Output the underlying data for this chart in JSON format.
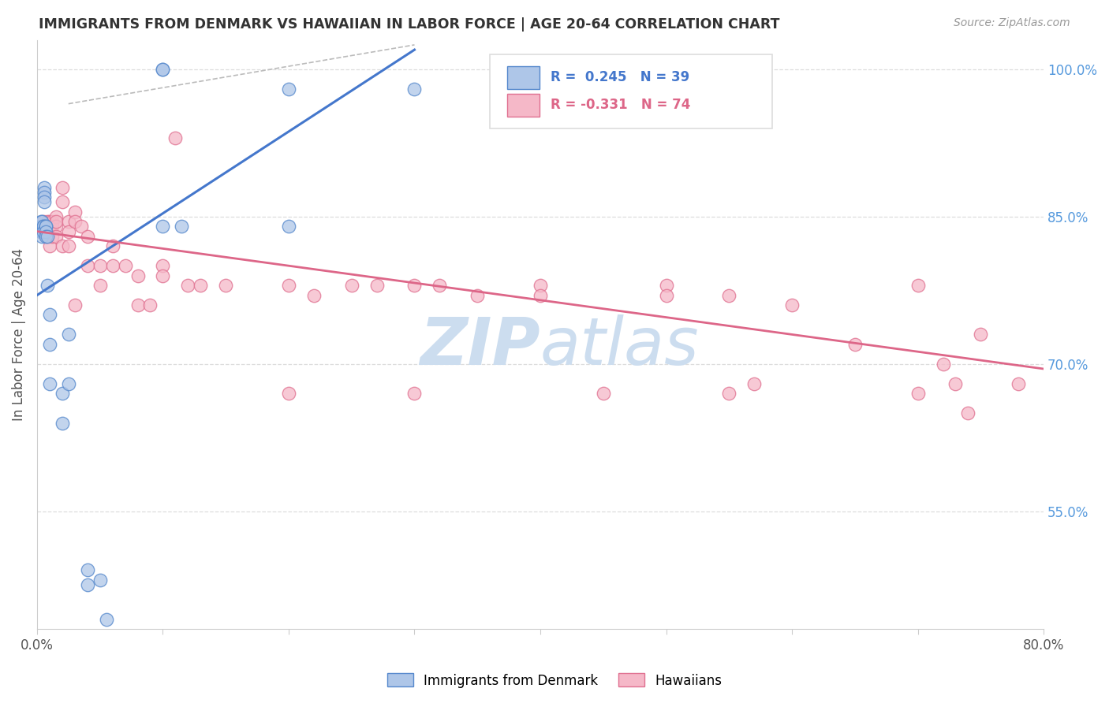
{
  "title": "IMMIGRANTS FROM DENMARK VS HAWAIIAN IN LABOR FORCE | AGE 20-64 CORRELATION CHART",
  "source": "Source: ZipAtlas.com",
  "ylabel": "In Labor Force | Age 20-64",
  "xmin": 0.0,
  "xmax": 0.8,
  "ymin": 0.43,
  "ymax": 1.03,
  "blue_color": "#aec6e8",
  "blue_edge_color": "#5588cc",
  "pink_color": "#f5b8c8",
  "pink_edge_color": "#e07090",
  "blue_line_color": "#4477cc",
  "pink_line_color": "#dd6688",
  "right_axis_color": "#5599dd",
  "grid_color": "#dddddd",
  "watermark_color": "#ccddef",
  "scatter_blue_x": [
    0.003,
    0.003,
    0.003,
    0.004,
    0.004,
    0.004,
    0.004,
    0.004,
    0.005,
    0.005,
    0.005,
    0.006,
    0.006,
    0.006,
    0.006,
    0.007,
    0.007,
    0.007,
    0.007,
    0.008,
    0.008,
    0.01,
    0.01,
    0.01,
    0.02,
    0.02,
    0.025,
    0.025,
    0.04,
    0.04,
    0.05,
    0.055,
    0.1,
    0.1,
    0.1,
    0.115,
    0.2,
    0.2,
    0.3
  ],
  "scatter_blue_y": [
    0.835,
    0.84,
    0.845,
    0.84,
    0.84,
    0.845,
    0.835,
    0.83,
    0.84,
    0.84,
    0.835,
    0.88,
    0.875,
    0.87,
    0.865,
    0.84,
    0.84,
    0.835,
    0.83,
    0.78,
    0.83,
    0.75,
    0.72,
    0.68,
    0.67,
    0.64,
    0.73,
    0.68,
    0.49,
    0.475,
    0.48,
    0.44,
    1.0,
    1.0,
    0.84,
    0.84,
    0.84,
    0.98,
    0.98
  ],
  "scatter_pink_x": [
    0.003,
    0.004,
    0.005,
    0.005,
    0.006,
    0.006,
    0.007,
    0.007,
    0.008,
    0.008,
    0.008,
    0.01,
    0.01,
    0.01,
    0.01,
    0.012,
    0.012,
    0.012,
    0.015,
    0.015,
    0.015,
    0.015,
    0.02,
    0.02,
    0.02,
    0.025,
    0.025,
    0.025,
    0.03,
    0.03,
    0.03,
    0.035,
    0.04,
    0.04,
    0.05,
    0.05,
    0.06,
    0.06,
    0.07,
    0.08,
    0.08,
    0.09,
    0.1,
    0.1,
    0.11,
    0.12,
    0.13,
    0.15,
    0.2,
    0.2,
    0.22,
    0.25,
    0.27,
    0.3,
    0.3,
    0.32,
    0.35,
    0.4,
    0.4,
    0.45,
    0.5,
    0.5,
    0.55,
    0.55,
    0.57,
    0.6,
    0.65,
    0.7,
    0.7,
    0.72,
    0.73,
    0.74,
    0.75,
    0.78
  ],
  "scatter_pink_y": [
    0.835,
    0.84,
    0.845,
    0.835,
    0.84,
    0.835,
    0.84,
    0.835,
    0.845,
    0.84,
    0.83,
    0.845,
    0.84,
    0.835,
    0.82,
    0.845,
    0.84,
    0.83,
    0.85,
    0.84,
    0.845,
    0.83,
    0.88,
    0.865,
    0.82,
    0.845,
    0.835,
    0.82,
    0.855,
    0.845,
    0.76,
    0.84,
    0.83,
    0.8,
    0.8,
    0.78,
    0.82,
    0.8,
    0.8,
    0.79,
    0.76,
    0.76,
    0.8,
    0.79,
    0.93,
    0.78,
    0.78,
    0.78,
    0.78,
    0.67,
    0.77,
    0.78,
    0.78,
    0.78,
    0.67,
    0.78,
    0.77,
    0.78,
    0.77,
    0.67,
    0.78,
    0.77,
    0.77,
    0.67,
    0.68,
    0.76,
    0.72,
    0.78,
    0.67,
    0.7,
    0.68,
    0.65,
    0.73,
    0.68
  ],
  "blue_line_x0": 0.0,
  "blue_line_x1": 0.3,
  "blue_line_y0": 0.77,
  "blue_line_y1": 1.02,
  "pink_line_x0": 0.0,
  "pink_line_x1": 0.8,
  "pink_line_y0": 0.835,
  "pink_line_y1": 0.695,
  "ref_line_x0": 0.025,
  "ref_line_x1": 0.3,
  "ref_line_y0": 0.965,
  "ref_line_y1": 1.025,
  "y_ticks": [
    0.55,
    0.7,
    0.85,
    1.0
  ],
  "y_tick_labels": [
    "55.0%",
    "70.0%",
    "85.0%",
    "100.0%"
  ]
}
